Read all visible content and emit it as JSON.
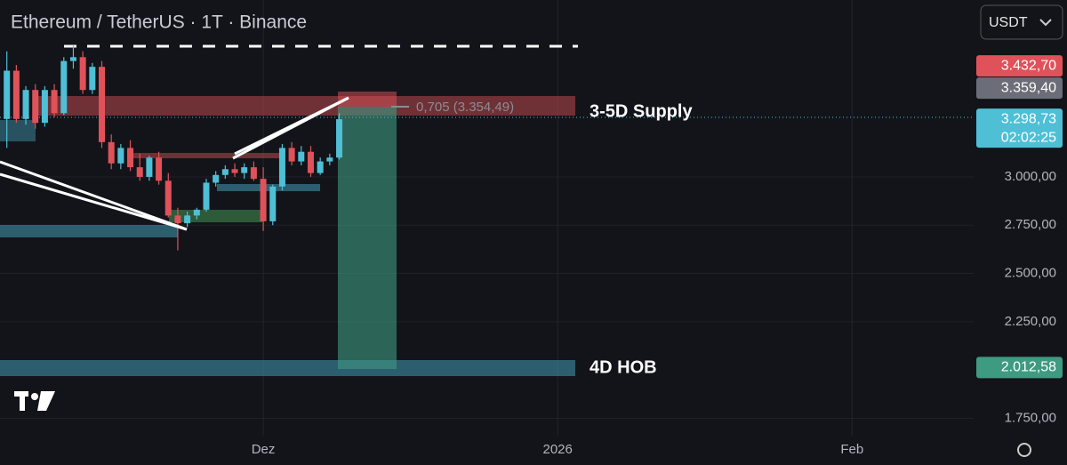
{
  "chart_data": {
    "type": "candlestick",
    "title": "Ethereum / TetherUS · 1T · Binance",
    "currency": "USDT",
    "up_color": "#4fbfd6",
    "down_color": "#e0525a",
    "open": [
      3300,
      3550,
      3300,
      3450,
      3280,
      3450,
      3330,
      3600,
      3620,
      3450,
      3570,
      3180,
      3070,
      3150,
      3050,
      3000,
      3100,
      2980,
      2800,
      2760,
      2800,
      2830,
      2970,
      3010,
      3040,
      3020,
      3050,
      2990,
      2770,
      2950,
      3150,
      3080,
      3130,
      3020,
      3080,
      3100
    ],
    "high": [
      3650,
      3580,
      3470,
      3480,
      3470,
      3480,
      3620,
      3680,
      3650,
      3590,
      3600,
      3220,
      3170,
      3190,
      3120,
      3110,
      3130,
      3020,
      2840,
      2820,
      2840,
      2990,
      3030,
      3060,
      3070,
      3070,
      3080,
      3050,
      2960,
      3170,
      3180,
      3160,
      3160,
      3100,
      3120,
      3330
    ],
    "low": [
      3150,
      3280,
      3270,
      3250,
      3260,
      3310,
      3320,
      3560,
      3430,
      3430,
      3150,
      3040,
      3040,
      3030,
      2980,
      2980,
      2960,
      2790,
      2620,
      2740,
      2780,
      2820,
      2950,
      2990,
      3000,
      2990,
      2980,
      2720,
      2750,
      2930,
      3060,
      3060,
      3000,
      3010,
      3060,
      3090
    ],
    "close": [
      3550,
      3300,
      3450,
      3280,
      3450,
      3330,
      3600,
      3620,
      3450,
      3570,
      3180,
      3070,
      3150,
      3050,
      3000,
      3100,
      2980,
      2800,
      2760,
      2800,
      2830,
      2970,
      3010,
      3040,
      3020,
      3050,
      2990,
      2770,
      2950,
      3150,
      3080,
      3130,
      3020,
      3080,
      3100,
      3298.73
    ],
    "ylim": [
      1660,
      3916
    ],
    "yticks": [
      {
        "value": 3000,
        "label": "3.000,00"
      },
      {
        "value": 2750,
        "label": "2.750,00"
      },
      {
        "value": 2500,
        "label": "2.500,00"
      },
      {
        "value": 2250,
        "label": "2.250,00"
      },
      {
        "value": 1750,
        "label": "1.750,00"
      }
    ],
    "xlim": [
      -0.72,
      101.8
    ],
    "xticks": [
      {
        "value": 27,
        "label": "Dez"
      },
      {
        "value": 58,
        "label": "2026"
      },
      {
        "value": 89,
        "label": "Feb"
      }
    ],
    "price_labels": [
      {
        "value": 3432.7,
        "label": "3.432,70",
        "color": "#e0525a"
      },
      {
        "value": 3359.4,
        "label": "3.359,40",
        "color": "#6b6e78"
      },
      {
        "value": 3298.73,
        "label": "3.298,73",
        "color": "#4fbfd6",
        "countdown": "02:02:25"
      },
      {
        "value": 2012.58,
        "label": "2.012,58",
        "color": "#3f9a82"
      }
    ],
    "annotations": [
      "3-5D Supply",
      "4D HOB",
      "0,705 (3.354,49)"
    ]
  }
}
